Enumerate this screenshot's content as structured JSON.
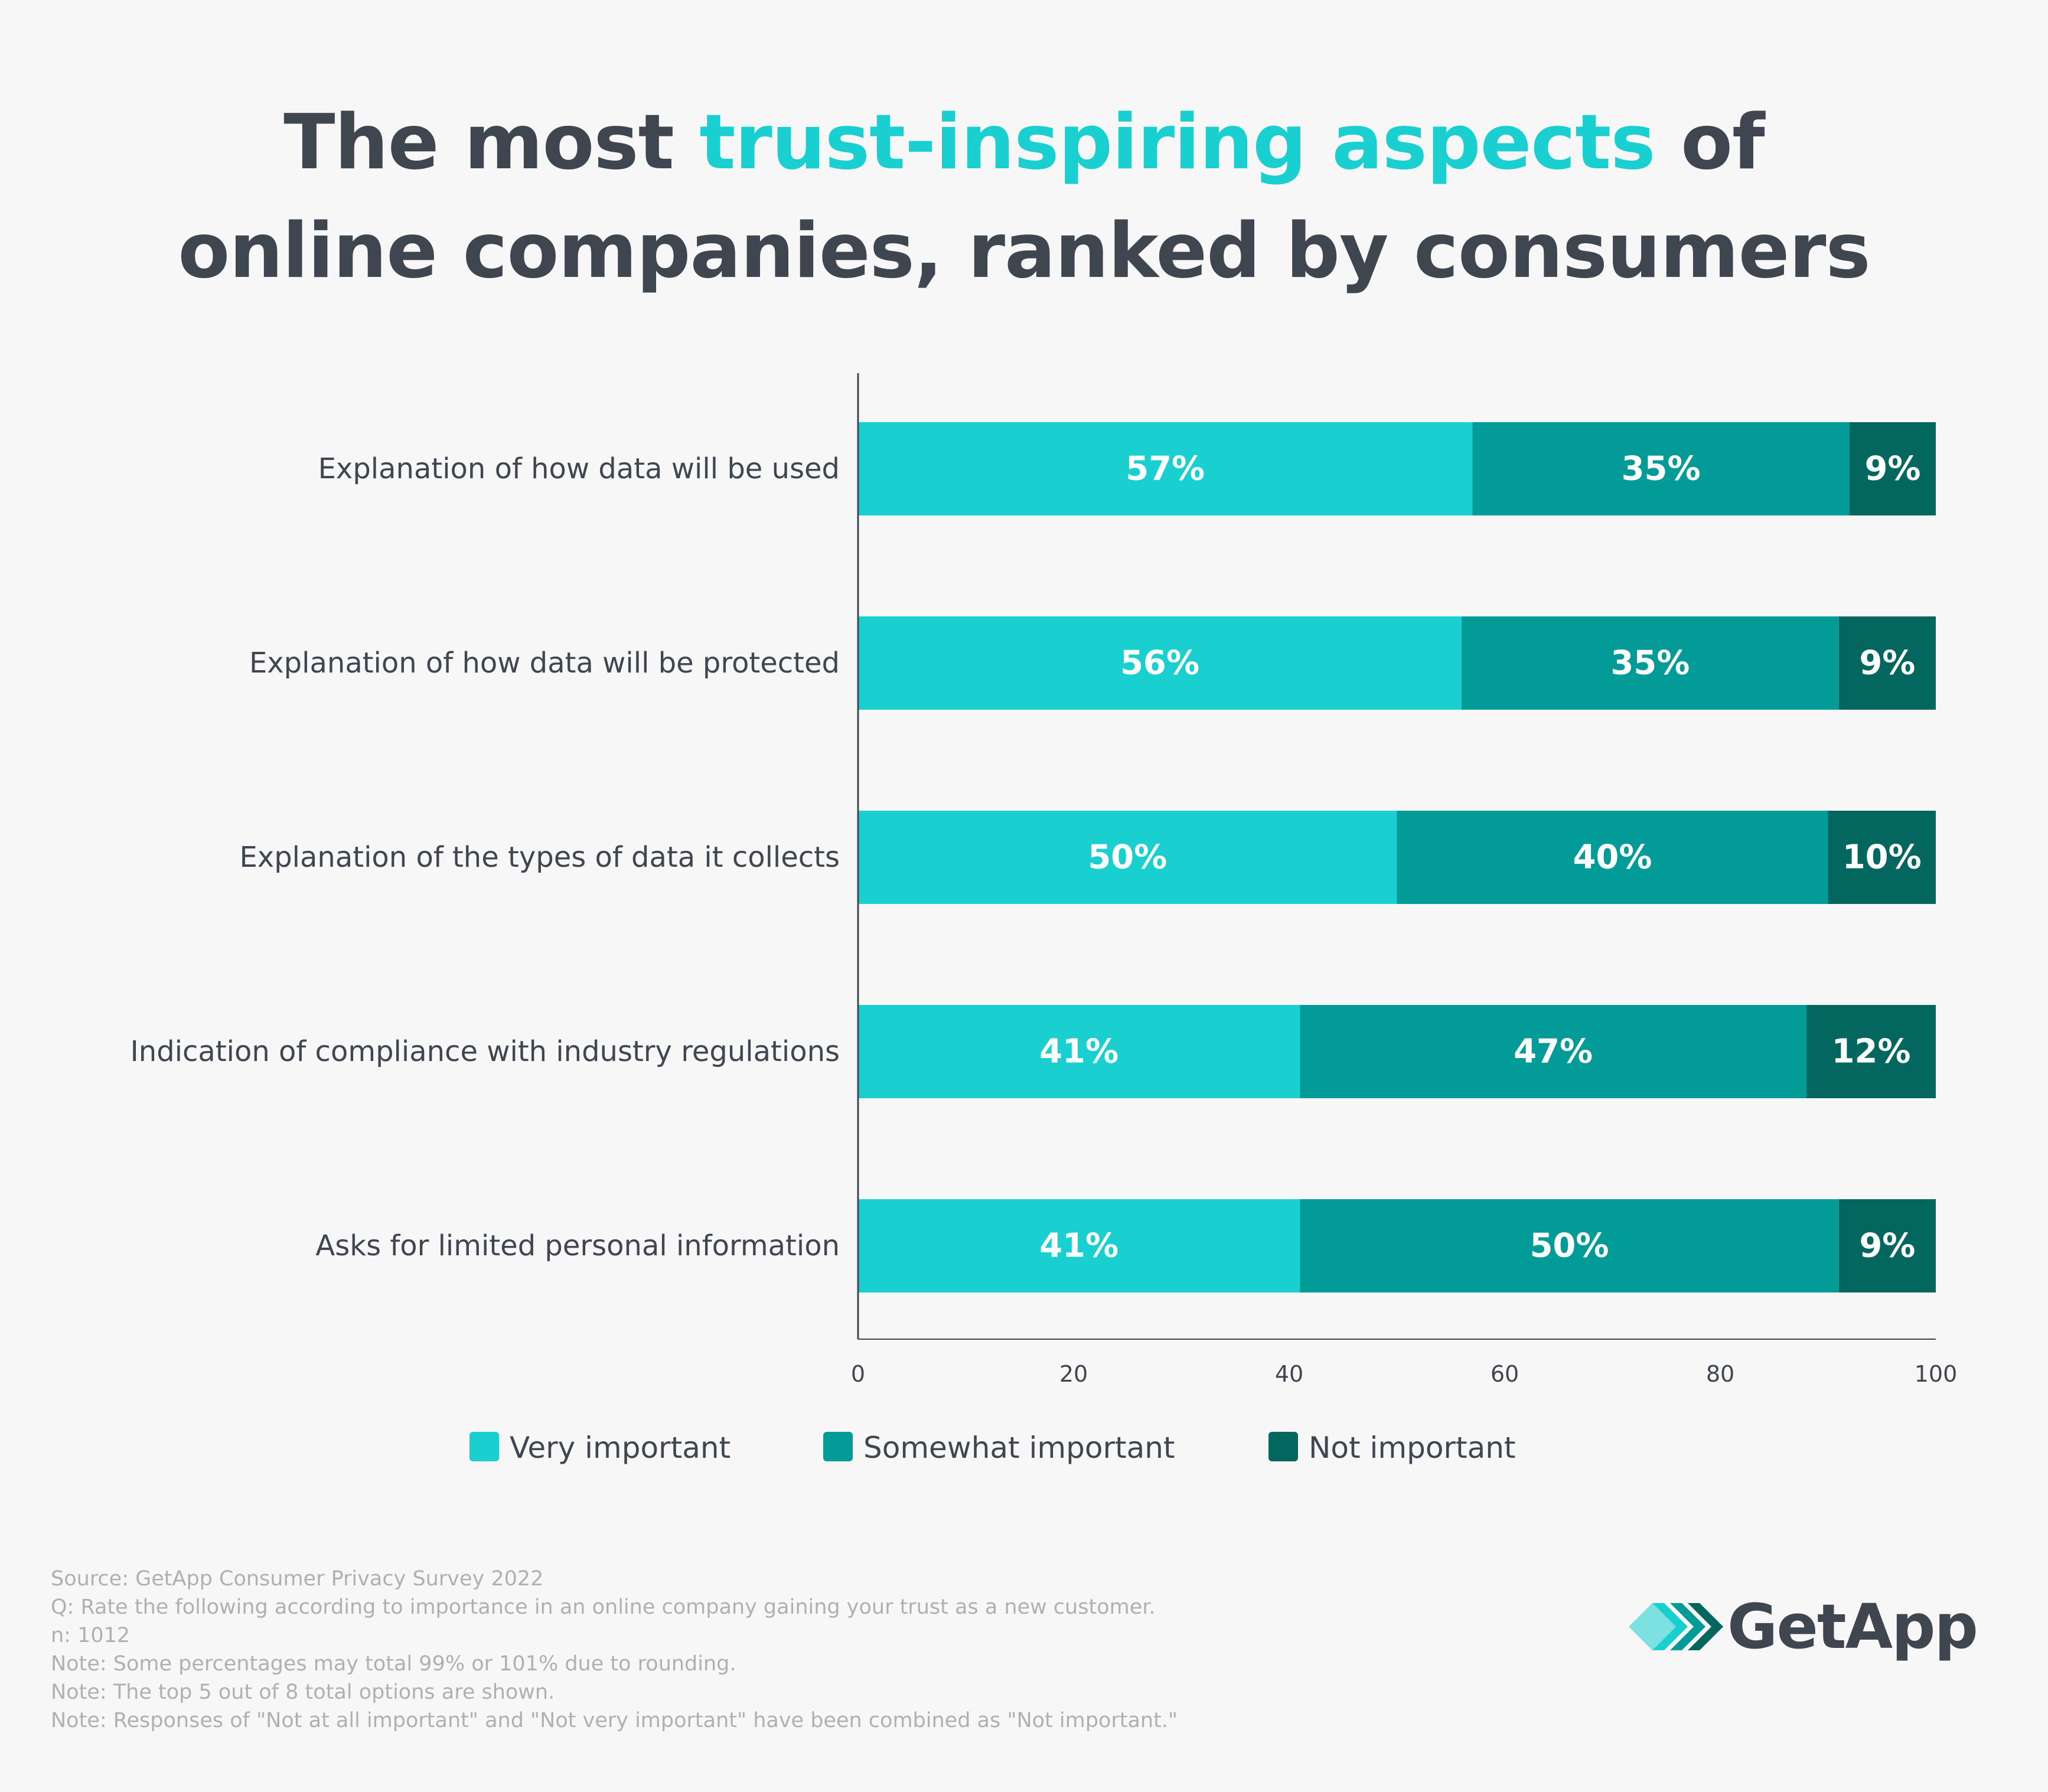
{
  "title": {
    "part1": "The most ",
    "highlight": "trust-inspiring aspects",
    "part2": " of",
    "line2": "online companies, ranked by consumers"
  },
  "colors": {
    "very": "#19cfcf",
    "somewhat": "#039b98",
    "not": "#036760",
    "text": "#3f4650",
    "note": "#b0b0b0",
    "background": "#f7f7f7"
  },
  "chart_data": {
    "type": "bar",
    "orientation": "horizontal",
    "stacked": true,
    "categories": [
      "Explanation of how data will be used",
      "Explanation of how data will be protected",
      "Explanation of the types of data it collects",
      "Indication of compliance with industry regulations",
      "Asks for limited personal information"
    ],
    "series": [
      {
        "name": "Very important",
        "values": [
          57,
          56,
          50,
          41,
          41
        ]
      },
      {
        "name": "Somewhat important",
        "values": [
          35,
          35,
          40,
          47,
          50
        ]
      },
      {
        "name": "Not important",
        "values": [
          9,
          9,
          10,
          12,
          9
        ]
      }
    ],
    "data_labels": [
      [
        "57%",
        "56%",
        "50%",
        "41%",
        "41%"
      ],
      [
        "35%",
        "35%",
        "40%",
        "47%",
        "50%"
      ],
      [
        "9%",
        "9%",
        "10%",
        "12%",
        "9%"
      ]
    ],
    "xlim": [
      0,
      100
    ],
    "xticks": [
      "0",
      "20",
      "40",
      "60",
      "80",
      "100"
    ],
    "legend_position": "bottom",
    "grid": false
  },
  "notes": [
    "Source: GetApp Consumer Privacy Survey 2022",
    "Q: Rate the following according to importance in an online company gaining your trust as a new customer.",
    "n: 1012",
    "Note: Some percentages may total 99% or 101% due to rounding.",
    "Note: The top 5 out of 8 total options are shown.",
    "Note: Responses of \"Not at all important\" and \"Not very important\" have been combined as \"Not important.\""
  ],
  "logo": {
    "text": "GetApp"
  }
}
